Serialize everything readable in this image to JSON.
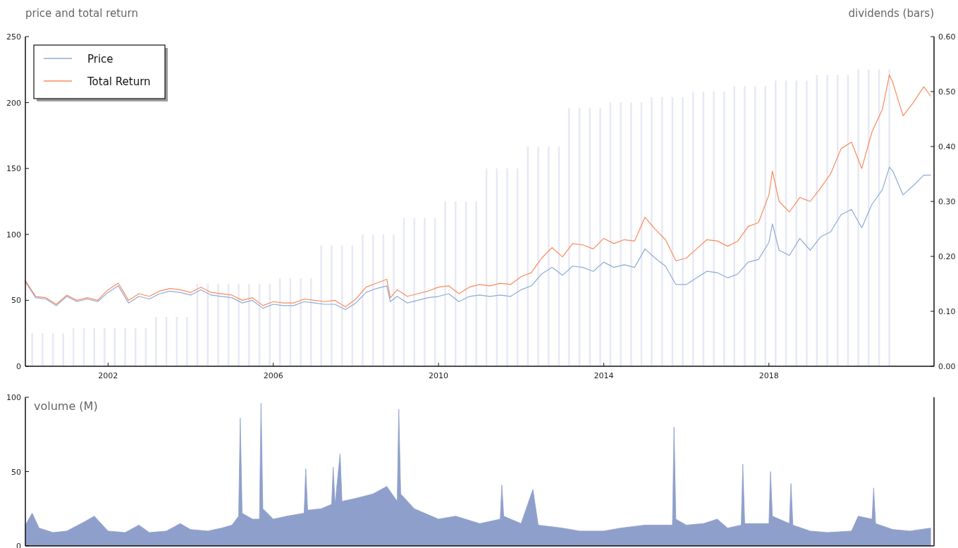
{
  "chart_data": [
    {
      "type": "line",
      "ylabel": "price and total return",
      "y2label": "dividends (bars)",
      "legend": "top left",
      "xlim": [
        "2000-01-01",
        "2021-12-31"
      ],
      "xticks": [
        {
          "value": "2002",
          "label": "2002"
        },
        {
          "value": "2006",
          "label": "2006"
        },
        {
          "value": "2010",
          "label": "2010"
        },
        {
          "value": "2014",
          "label": "2014"
        },
        {
          "value": "2018",
          "label": "2018"
        }
      ],
      "ylim": [
        0,
        250
      ],
      "yticks": [
        0,
        50,
        100,
        150,
        200,
        250
      ],
      "y2lim": [
        0,
        0.6
      ],
      "y2ticks": [
        {
          "value": 0,
          "label": "0.00"
        },
        {
          "value": 0.1,
          "label": "0.10"
        },
        {
          "value": 0.2,
          "label": "0.20"
        },
        {
          "value": 0.3,
          "label": "0.30"
        },
        {
          "value": 0.4,
          "label": "0.40"
        },
        {
          "value": 0.5,
          "label": "0.50"
        },
        {
          "value": 0.6,
          "label": "0.60"
        }
      ],
      "x": [
        "2000-01",
        "2000-04",
        "2000-07",
        "2000-10",
        "2001-01",
        "2001-04",
        "2001-07",
        "2001-10",
        "2002-01",
        "2002-04",
        "2002-07",
        "2002-10",
        "2003-01",
        "2003-04",
        "2003-07",
        "2003-10",
        "2004-01",
        "2004-04",
        "2004-07",
        "2004-10",
        "2005-01",
        "2005-04",
        "2005-07",
        "2005-10",
        "2006-01",
        "2006-04",
        "2006-07",
        "2006-10",
        "2007-01",
        "2007-04",
        "2007-07",
        "2007-10",
        "2008-01",
        "2008-04",
        "2008-07",
        "2008-10",
        "2008-11",
        "2009-01",
        "2009-04",
        "2009-07",
        "2009-10",
        "2010-01",
        "2010-04",
        "2010-07",
        "2010-10",
        "2011-01",
        "2011-04",
        "2011-07",
        "2011-10",
        "2012-01",
        "2012-04",
        "2012-07",
        "2012-10",
        "2013-01",
        "2013-04",
        "2013-07",
        "2013-10",
        "2014-01",
        "2014-04",
        "2014-07",
        "2014-10",
        "2015-01",
        "2015-04",
        "2015-07",
        "2015-10",
        "2016-01",
        "2016-04",
        "2016-07",
        "2016-10",
        "2017-01",
        "2017-04",
        "2017-07",
        "2017-10",
        "2018-01",
        "2018-02",
        "2018-04",
        "2018-07",
        "2018-10",
        "2019-01",
        "2019-04",
        "2019-07",
        "2019-10",
        "2020-01",
        "2020-04",
        "2020-07",
        "2020-10",
        "2020-12",
        "2021-01",
        "2021-04",
        "2021-07",
        "2021-10",
        "2021-12"
      ],
      "series": [
        {
          "name": "Price",
          "color": "#8eabd4",
          "values": [
            64,
            52,
            51,
            46,
            53,
            49,
            51,
            49,
            56,
            61,
            48,
            53,
            51,
            55,
            57,
            56,
            54,
            58,
            54,
            53,
            52,
            48,
            50,
            44,
            47,
            46,
            46,
            49,
            48,
            47,
            47,
            43,
            48,
            56,
            59,
            61,
            49,
            53,
            48,
            50,
            52,
            53,
            55,
            49,
            53,
            54,
            53,
            54,
            53,
            58,
            61,
            70,
            75,
            69,
            76,
            75,
            72,
            79,
            75,
            77,
            75,
            89,
            82,
            76,
            62,
            62,
            67,
            72,
            71,
            67,
            70,
            79,
            81,
            94,
            108,
            88,
            84,
            97,
            88,
            98,
            102,
            115,
            119,
            105,
            123,
            134,
            151,
            148,
            130,
            137,
            145,
            145
          ]
        },
        {
          "name": "Total Return",
          "color": "#fa8a5c",
          "values": [
            65,
            53,
            52,
            47,
            54,
            50,
            52,
            50,
            58,
            63,
            50,
            55,
            53,
            57,
            59,
            58,
            56,
            60,
            56,
            55,
            54,
            50,
            52,
            46,
            49,
            48,
            48,
            51,
            50,
            49,
            50,
            45,
            51,
            60,
            63,
            66,
            52,
            58,
            53,
            55,
            57,
            60,
            61,
            55,
            60,
            62,
            61,
            63,
            62,
            68,
            71,
            82,
            90,
            83,
            93,
            92,
            89,
            97,
            93,
            96,
            95,
            113,
            104,
            96,
            80,
            82,
            89,
            96,
            95,
            91,
            95,
            106,
            109,
            130,
            148,
            125,
            117,
            128,
            125,
            135,
            146,
            165,
            170,
            150,
            178,
            195,
            221,
            215,
            190,
            200,
            212,
            205
          ]
        },
        {
          "type": "bar",
          "axis": "y2",
          "color": "#e6e9f4",
          "x": [
            "2000-03",
            "2000-06",
            "2000-09",
            "2000-12",
            "2001-03",
            "2001-06",
            "2001-09",
            "2001-12",
            "2002-03",
            "2002-06",
            "2002-09",
            "2002-12",
            "2003-03",
            "2003-06",
            "2003-09",
            "2003-12",
            "2004-03",
            "2004-06",
            "2004-09",
            "2004-12",
            "2005-03",
            "2005-06",
            "2005-09",
            "2005-12",
            "2006-03",
            "2006-06",
            "2006-09",
            "2006-12",
            "2007-03",
            "2007-06",
            "2007-09",
            "2007-12",
            "2008-03",
            "2008-06",
            "2008-09",
            "2008-12",
            "2009-03",
            "2009-06",
            "2009-09",
            "2009-12",
            "2010-03",
            "2010-06",
            "2010-09",
            "2010-12",
            "2011-03",
            "2011-06",
            "2011-09",
            "2011-12",
            "2012-03",
            "2012-06",
            "2012-09",
            "2012-12",
            "2013-03",
            "2013-06",
            "2013-09",
            "2013-12",
            "2014-03",
            "2014-06",
            "2014-09",
            "2014-12",
            "2015-03",
            "2015-06",
            "2015-09",
            "2015-12",
            "2016-03",
            "2016-06",
            "2016-09",
            "2016-12",
            "2017-03",
            "2017-06",
            "2017-09",
            "2017-12",
            "2018-03",
            "2018-06",
            "2018-09",
            "2018-12",
            "2019-03",
            "2019-06",
            "2019-09",
            "2019-12",
            "2020-03",
            "2020-06",
            "2020-09",
            "2020-12"
          ],
          "values": [
            0.06,
            0.06,
            0.06,
            0.06,
            0.07,
            0.07,
            0.07,
            0.07,
            0.07,
            0.07,
            0.07,
            0.07,
            0.09,
            0.09,
            0.09,
            0.09,
            0.15,
            0.15,
            0.15,
            0.15,
            0.15,
            0.15,
            0.15,
            0.15,
            0.16,
            0.16,
            0.16,
            0.16,
            0.22,
            0.22,
            0.22,
            0.22,
            0.24,
            0.24,
            0.24,
            0.24,
            0.27,
            0.27,
            0.27,
            0.27,
            0.3,
            0.3,
            0.3,
            0.3,
            0.36,
            0.36,
            0.36,
            0.36,
            0.4,
            0.4,
            0.4,
            0.4,
            0.47,
            0.47,
            0.47,
            0.47,
            0.48,
            0.48,
            0.48,
            0.48,
            0.49,
            0.49,
            0.49,
            0.49,
            0.5,
            0.5,
            0.5,
            0.5,
            0.51,
            0.51,
            0.51,
            0.51,
            0.52,
            0.52,
            0.52,
            0.52,
            0.53,
            0.53,
            0.53,
            0.53,
            0.54,
            0.54,
            0.54,
            0.54
          ]
        }
      ]
    },
    {
      "type": "area",
      "title": "volume (M)",
      "tick_labels": "y",
      "xlim": [
        "2000-01-01",
        "2021-12-31"
      ],
      "ylim": [
        0,
        100
      ],
      "yticks": [
        0,
        50,
        100
      ],
      "x": [
        "2000-01",
        "2000-03",
        "2000-05",
        "2000-09",
        "2001-01",
        "2001-06",
        "2001-09",
        "2002-01",
        "2002-06",
        "2002-10",
        "2003-01",
        "2003-06",
        "2003-10",
        "2004-01",
        "2004-06",
        "2004-10",
        "2005-01",
        "2005-03-01",
        "2005-03-15",
        "2005-04-01",
        "2005-07",
        "2005-09-01",
        "2005-09-15",
        "2005-10-01",
        "2006-01",
        "2006-05",
        "2006-10-01",
        "2006-10-15",
        "2006-11-01",
        "2007-03",
        "2007-06-01",
        "2007-06-15",
        "2007-07-01",
        "2007-08-15",
        "2007-09-01",
        "2008-01",
        "2008-06",
        "2008-10",
        "2009-01-01",
        "2009-01-15",
        "2009-02-01",
        "2009-06",
        "2010-01",
        "2010-06",
        "2011-01",
        "2011-07-01",
        "2011-07-15",
        "2011-08-01",
        "2012-01",
        "2012-04-15",
        "2012-06",
        "2013-01",
        "2013-06",
        "2014-01",
        "2014-06",
        "2015-01",
        "2015-09-01",
        "2015-09-15",
        "2015-10-01",
        "2016-01",
        "2016-06",
        "2016-10",
        "2017-01",
        "2017-05-01",
        "2017-05-15",
        "2017-06-01",
        "2018-01-01",
        "2018-01-15",
        "2018-02-01",
        "2018-07-01",
        "2018-07-15",
        "2018-08-01",
        "2019-01",
        "2019-06",
        "2020-01",
        "2020-03",
        "2020-07-01",
        "2020-07-15",
        "2020-08-01",
        "2021-01",
        "2021-06",
        "2021-12"
      ],
      "series": [
        {
          "color": "#8f9fcb",
          "values": [
            14,
            22,
            12,
            9,
            10,
            16,
            20,
            10,
            9,
            14,
            9,
            10,
            15,
            11,
            10,
            12,
            14,
            20,
            86,
            22,
            18,
            18,
            96,
            25,
            18,
            20,
            22,
            52,
            24,
            25,
            28,
            53,
            28,
            62,
            30,
            32,
            35,
            40,
            30,
            92,
            35,
            25,
            18,
            20,
            15,
            18,
            41,
            20,
            15,
            38,
            14,
            12,
            10,
            10,
            12,
            14,
            14,
            80,
            18,
            14,
            15,
            18,
            12,
            14,
            55,
            15,
            15,
            50,
            20,
            15,
            42,
            14,
            10,
            9,
            10,
            20,
            18,
            39,
            15,
            11,
            10,
            12
          ]
        }
      ]
    }
  ]
}
